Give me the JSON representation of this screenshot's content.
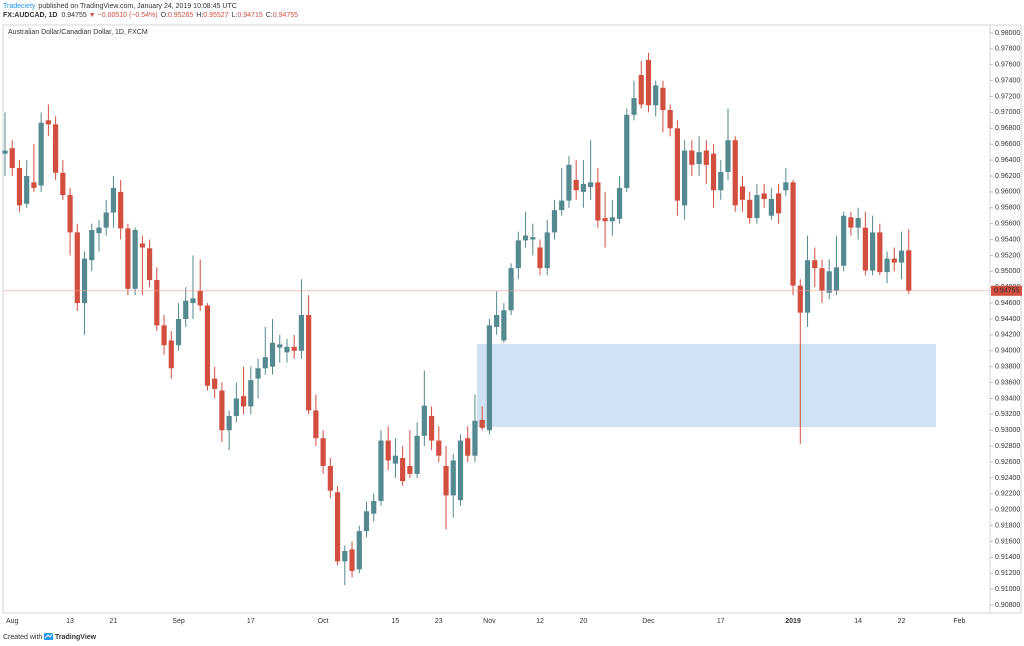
{
  "header": {
    "publisher": "Tradeciety",
    "published": "published on TradingView.com, January 24, 2019 10:08:45 UTC",
    "symbol": "FX:AUDCAD, 1D",
    "price": "0.94755",
    "change": "▼ −0.00510 (−0.54%)",
    "ohlc": [
      {
        "label": "O:",
        "value": "0.95265"
      },
      {
        "label": "H:",
        "value": "0.95527"
      },
      {
        "label": "L:",
        "value": "0.94715"
      },
      {
        "label": "C:",
        "value": "0.94755"
      }
    ]
  },
  "footer": {
    "created": "Created with",
    "brand": "TradingView"
  },
  "chart_data": {
    "type": "candlestick",
    "title": "Australian Dollar/Canadian Dollar, 1D, FXCM",
    "up_color": "#53898f",
    "down_color": "#d24e3f",
    "categories": [
      null,
      "Aug",
      null,
      null,
      null,
      null,
      null,
      null,
      null,
      "13",
      null,
      null,
      null,
      null,
      null,
      "21",
      null,
      null,
      null,
      null,
      null,
      null,
      null,
      null,
      "Sep",
      null,
      null,
      null,
      null,
      null,
      null,
      null,
      null,
      null,
      "17",
      null,
      null,
      null,
      null,
      null,
      null,
      null,
      null,
      null,
      "Oct",
      null,
      null,
      null,
      null,
      null,
      null,
      null,
      null,
      null,
      "15",
      null,
      null,
      null,
      null,
      null,
      "23",
      null,
      null,
      null,
      null,
      null,
      null,
      "Nov",
      null,
      null,
      null,
      null,
      null,
      null,
      "12",
      null,
      null,
      null,
      null,
      null,
      "20",
      null,
      null,
      null,
      null,
      null,
      null,
      null,
      null,
      "Dec",
      null,
      null,
      null,
      null,
      null,
      null,
      null,
      null,
      null,
      "17",
      null,
      null,
      null,
      null,
      null,
      null,
      null,
      null,
      null,
      "2019",
      null,
      null,
      null,
      null,
      null,
      null,
      null,
      null,
      "14",
      null,
      null,
      null,
      null,
      null,
      "22",
      null,
      null,
      null,
      null,
      null,
      null,
      null,
      "Feb"
    ],
    "open": [
      0.9648,
      0.9655,
      0.963,
      0.9585,
      0.9612,
      0.9608,
      0.969,
      0.9685,
      0.9624,
      0.9596,
      0.9549,
      0.946,
      0.9514,
      0.9548,
      0.9555,
      0.9574,
      0.96,
      0.9554,
      0.9478,
      0.9535,
      0.9529,
      0.9489,
      0.9432,
      0.9413,
      0.9407,
      0.944,
      0.946,
      0.9476,
      0.9457,
      0.9365,
      0.935,
      0.93,
      0.9318,
      0.9343,
      0.933,
      0.9365,
      0.9378,
      0.938,
      0.9404,
      0.9398,
      0.9405,
      0.94,
      0.9445,
      0.9325,
      0.929,
      0.9255,
      0.9222,
      0.9135,
      0.915,
      0.9125,
      0.9173,
      0.9195,
      0.9211,
      0.9287,
      0.9258,
      0.9265,
      0.9255,
      0.9245,
      0.9293,
      0.9318,
      0.9287,
      0.9255,
      0.9218,
      0.9212,
      0.929,
      0.9268,
      0.9313,
      0.93,
      0.943,
      0.9413,
      0.9451,
      0.9504,
      0.9539,
      0.954,
      0.953,
      0.9504,
      0.9549,
      0.9577,
      0.9589,
      0.9615,
      0.96,
      0.9606,
      0.9612,
      0.9567,
      0.9563,
      0.9566,
      0.9605,
      0.9697,
      0.9747,
      0.9766,
      0.9709,
      0.9731,
      0.9703,
      0.968,
      0.9583,
      0.9652,
      0.9635,
      0.9652,
      0.9648,
      0.9602,
      0.9625,
      0.9665,
      0.9607,
      0.959,
      0.9567,
      0.9598,
      0.957,
      0.9598,
      0.9602,
      0.9612,
      0.9482,
      0.9448,
      0.9514,
      0.9504,
      0.9473,
      0.9476,
      0.9507,
      0.9568,
      0.9555,
      0.9555,
      0.9501,
      0.9549,
      0.9499,
      0.9516,
      0.9511,
      0.95265,
      null,
      null,
      null,
      null,
      null,
      null,
      null
    ],
    "high": [
      0.97,
      0.9665,
      0.964,
      0.964,
      0.966,
      0.97,
      0.971,
      0.9695,
      0.964,
      0.9605,
      0.956,
      0.9525,
      0.956,
      0.9565,
      0.959,
      0.962,
      0.9615,
      0.956,
      0.9555,
      0.9545,
      0.954,
      0.9505,
      0.9445,
      0.9425,
      0.946,
      0.948,
      0.952,
      0.9515,
      0.946,
      0.938,
      0.936,
      0.9325,
      0.936,
      0.938,
      0.938,
      0.939,
      0.943,
      0.944,
      0.942,
      0.9415,
      0.942,
      0.949,
      0.947,
      0.9345,
      0.93,
      0.9265,
      0.923,
      0.9155,
      0.916,
      0.918,
      0.921,
      0.922,
      0.93,
      0.9305,
      0.929,
      0.928,
      0.93,
      0.931,
      0.9375,
      0.933,
      0.9305,
      0.928,
      0.927,
      0.9295,
      0.9305,
      0.9345,
      0.933,
      0.944,
      0.9475,
      0.946,
      0.951,
      0.955,
      0.9575,
      0.956,
      0.954,
      0.9565,
      0.959,
      0.963,
      0.9645,
      0.964,
      0.964,
      0.9665,
      0.963,
      0.96,
      0.959,
      0.962,
      0.9705,
      0.974,
      0.9765,
      0.9775,
      0.974,
      0.974,
      0.971,
      0.969,
      0.9665,
      0.9665,
      0.967,
      0.9665,
      0.966,
      0.964,
      0.9705,
      0.967,
      0.962,
      0.96,
      0.961,
      0.961,
      0.9605,
      0.961,
      0.963,
      0.9615,
      0.949,
      0.9545,
      0.953,
      0.9515,
      0.9515,
      0.9545,
      0.9575,
      0.9575,
      0.958,
      0.9575,
      0.957,
      0.956,
      0.9525,
      0.953,
      0.955,
      0.95527,
      null,
      null,
      null,
      null,
      null,
      null,
      null
    ],
    "low": [
      0.962,
      0.962,
      0.9575,
      0.958,
      0.96,
      0.96,
      0.967,
      0.9615,
      0.959,
      0.952,
      0.945,
      0.942,
      0.95,
      0.9525,
      0.9545,
      0.9555,
      0.954,
      0.947,
      0.947,
      0.947,
      0.948,
      0.9425,
      0.9395,
      0.9365,
      0.94,
      0.943,
      0.944,
      0.945,
      0.935,
      0.934,
      0.9285,
      0.9275,
      0.931,
      0.932,
      0.932,
      0.934,
      0.937,
      0.937,
      0.9385,
      0.9385,
      0.939,
      0.939,
      0.932,
      0.928,
      0.9245,
      0.9215,
      0.913,
      0.9105,
      0.9115,
      0.912,
      0.9165,
      0.9185,
      0.9205,
      0.925,
      0.924,
      0.923,
      0.924,
      0.924,
      0.928,
      0.9275,
      0.926,
      0.9175,
      0.919,
      0.9205,
      0.926,
      0.926,
      0.93,
      0.9295,
      0.942,
      0.941,
      0.9445,
      0.949,
      0.953,
      0.952,
      0.9495,
      0.9495,
      0.954,
      0.957,
      0.958,
      0.959,
      0.958,
      0.959,
      0.9555,
      0.953,
      0.9545,
      0.956,
      0.96,
      0.969,
      0.9705,
      0.97,
      0.9695,
      0.9675,
      0.967,
      0.957,
      0.9565,
      0.962,
      0.962,
      0.961,
      0.958,
      0.959,
      0.9615,
      0.9575,
      0.9575,
      0.956,
      0.956,
      0.958,
      0.9565,
      0.956,
      0.9595,
      0.947,
      0.9283,
      0.943,
      0.948,
      0.946,
      0.9465,
      0.947,
      0.95,
      0.9545,
      0.954,
      0.9495,
      0.9495,
      0.9495,
      0.9485,
      0.95,
      0.949,
      0.94715,
      null,
      null,
      null,
      null,
      null,
      null,
      null
    ],
    "close": [
      0.9652,
      0.963,
      0.9583,
      0.962,
      0.9605,
      0.9687,
      0.9685,
      0.9624,
      0.9596,
      0.9549,
      0.946,
      0.9516,
      0.9552,
      0.9555,
      0.9574,
      0.9605,
      0.9554,
      0.9478,
      0.9552,
      0.953,
      0.9489,
      0.9432,
      0.9407,
      0.9378,
      0.944,
      0.9463,
      0.9466,
      0.9457,
      0.9356,
      0.9352,
      0.93,
      0.9318,
      0.934,
      0.933,
      0.9363,
      0.9378,
      0.9392,
      0.941,
      0.9408,
      0.9405,
      0.94,
      0.9445,
      0.9325,
      0.929,
      0.9255,
      0.9224,
      0.9135,
      0.9148,
      0.9123,
      0.9173,
      0.9198,
      0.9211,
      0.9287,
      0.9262,
      0.9268,
      0.9236,
      0.9245,
      0.9293,
      0.9331,
      0.9287,
      0.9268,
      0.9218,
      0.9262,
      0.9287,
      0.9268,
      0.9312,
      0.9303,
      0.9432,
      0.9445,
      0.9451,
      0.9504,
      0.9539,
      0.9545,
      0.9543,
      0.9504,
      0.9549,
      0.9577,
      0.9589,
      0.9634,
      0.9602,
      0.961,
      0.9612,
      0.9564,
      0.9563,
      0.9568,
      0.9605,
      0.9697,
      0.9718,
      0.971,
      0.9709,
      0.9734,
      0.9703,
      0.968,
      0.9589,
      0.9652,
      0.9634,
      0.965,
      0.9634,
      0.9602,
      0.9625,
      0.9665,
      0.9583,
      0.959,
      0.9567,
      0.9596,
      0.9591,
      0.9591,
      0.9573,
      0.9612,
      0.9482,
      0.9448,
      0.9514,
      0.9504,
      0.9476,
      0.95,
      0.9505,
      0.957,
      0.9555,
      0.9567,
      0.9501,
      0.9549,
      0.9499,
      0.9516,
      0.9511,
      0.9526,
      0.94755,
      null,
      null,
      null,
      null,
      null,
      null,
      null
    ],
    "ylim": [
      0.907,
      0.981
    ],
    "yticks": [
      {
        "value": 0.908,
        "label": "0.90800"
      },
      {
        "value": 0.91,
        "label": "0.91000"
      },
      {
        "value": 0.912,
        "label": "0.91200"
      },
      {
        "value": 0.914,
        "label": "0.91400"
      },
      {
        "value": 0.916,
        "label": "0.91600"
      },
      {
        "value": 0.918,
        "label": "0.91800"
      },
      {
        "value": 0.92,
        "label": "0.92000"
      },
      {
        "value": 0.922,
        "label": "0.92200"
      },
      {
        "value": 0.924,
        "label": "0.92400"
      },
      {
        "value": 0.926,
        "label": "0.92600"
      },
      {
        "value": 0.928,
        "label": "0.92800"
      },
      {
        "value": 0.93,
        "label": "0.93000"
      },
      {
        "value": 0.932,
        "label": "0.93200"
      },
      {
        "value": 0.934,
        "label": "0.93400"
      },
      {
        "value": 0.936,
        "label": "0.93600"
      },
      {
        "value": 0.938,
        "label": "0.93800"
      },
      {
        "value": 0.94,
        "label": "0.94000"
      },
      {
        "value": 0.942,
        "label": "0.94200"
      },
      {
        "value": 0.944,
        "label": "0.94400"
      },
      {
        "value": 0.946,
        "label": "0.94600"
      },
      {
        "value": 0.948,
        "label": "0.94800"
      },
      {
        "value": 0.95,
        "label": "0.95000"
      },
      {
        "value": 0.952,
        "label": "0.95200"
      },
      {
        "value": 0.954,
        "label": "0.95400"
      },
      {
        "value": 0.956,
        "label": "0.95600"
      },
      {
        "value": 0.958,
        "label": "0.95800"
      },
      {
        "value": 0.96,
        "label": "0.96000"
      },
      {
        "value": 0.962,
        "label": "0.96200"
      },
      {
        "value": 0.964,
        "label": "0.96400"
      },
      {
        "value": 0.966,
        "label": "0.96600"
      },
      {
        "value": 0.968,
        "label": "0.96800"
      },
      {
        "value": 0.97,
        "label": "0.97000"
      },
      {
        "value": 0.972,
        "label": "0.97200"
      },
      {
        "value": 0.974,
        "label": "0.97400"
      },
      {
        "value": 0.976,
        "label": "0.97600"
      },
      {
        "value": 0.978,
        "label": "0.97800"
      },
      {
        "value": 0.98,
        "label": "0.98000"
      }
    ],
    "grid": false
  }
}
